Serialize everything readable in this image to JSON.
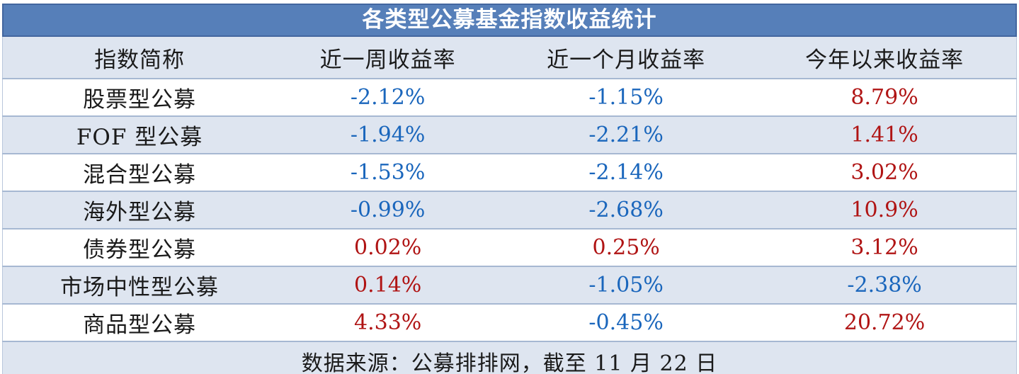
{
  "table": {
    "title": "各类型公募基金指数收益统计",
    "columns": [
      "指数简称",
      "近一周收益率",
      "近一个月收益率",
      "今年以来收益率"
    ],
    "rows": [
      {
        "name": "股票型公募",
        "week": "-2.12%",
        "month": "-1.15%",
        "ytd": "8.79%"
      },
      {
        "name": "FOF 型公募",
        "week": "-1.94%",
        "month": "-2.21%",
        "ytd": "1.41%"
      },
      {
        "name": "混合型公募",
        "week": "-1.53%",
        "month": "-2.14%",
        "ytd": "3.02%"
      },
      {
        "name": "海外型公募",
        "week": "-0.99%",
        "month": "-2.68%",
        "ytd": "10.9%"
      },
      {
        "name": "债券型公募",
        "week": "0.02%",
        "month": "0.25%",
        "ytd": "3.12%"
      },
      {
        "name": "市场中性型公募",
        "week": "0.14%",
        "month": "-1.05%",
        "ytd": "-2.38%"
      },
      {
        "name": "商品型公募",
        "week": "4.33%",
        "month": "-0.45%",
        "ytd": "20.72%"
      }
    ],
    "footer": "数据来源：公募排排网，截至 11 月 22 日"
  },
  "colors": {
    "title_bar_bg": "#567FB9",
    "title_bar_border": "#43669F",
    "band_row_bg": "#DEE5F0",
    "row_divider": "#A6B8D2",
    "negative_value": "#1A66BC",
    "positive_value": "#B01414",
    "title_text": "#FFFFFF",
    "body_text": "#1A1A1A"
  },
  "chart_data": {
    "type": "table",
    "title": "各类型公募基金指数收益统计",
    "columns": [
      "指数简称",
      "近一周收益率",
      "近一个月收益率",
      "今年以来收益率"
    ],
    "categories": [
      "股票型公募",
      "FOF 型公募",
      "混合型公募",
      "海外型公募",
      "债券型公募",
      "市场中性型公募",
      "商品型公募"
    ],
    "series": [
      {
        "name": "近一周收益率",
        "unit": "%",
        "values": [
          -2.12,
          -1.94,
          -1.53,
          -0.99,
          0.02,
          0.14,
          4.33
        ]
      },
      {
        "name": "近一个月收益率",
        "unit": "%",
        "values": [
          -1.15,
          -2.21,
          -2.14,
          -2.68,
          0.25,
          -1.05,
          -0.45
        ]
      },
      {
        "name": "今年以来收益率",
        "unit": "%",
        "values": [
          8.79,
          1.41,
          3.02,
          10.9,
          3.12,
          -2.38,
          20.72
        ]
      }
    ],
    "value_color_rule": "negative values blue (#1A66BC), non-negative values dark red (#B01414)",
    "source_note": "数据来源：公募排排网，截至 11 月 22 日"
  }
}
